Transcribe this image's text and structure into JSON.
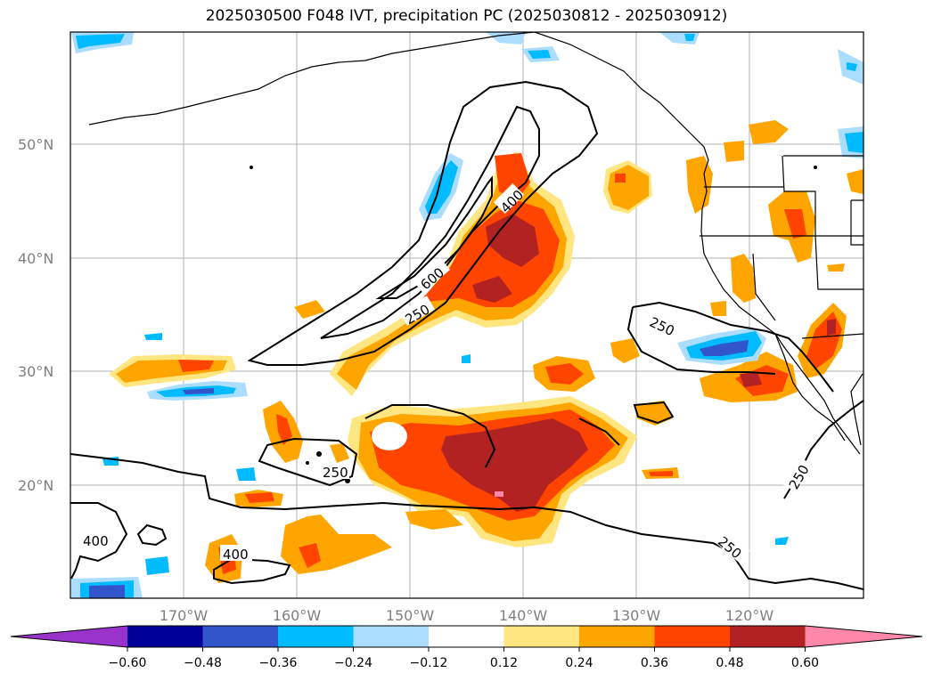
{
  "title": "2025030500 F048 IVT, precipitation PC (2025030812 - 2025030912)",
  "map": {
    "lat_labels": [
      "50°N",
      "40°N",
      "30°N",
      "20°N"
    ],
    "lon_labels": [
      "170°W",
      "160°W",
      "150°W",
      "140°W",
      "130°W",
      "120°W"
    ],
    "contour_labels": [
      "600",
      "400",
      "250",
      "250",
      "250",
      "250",
      "250",
      "400",
      "400"
    ]
  },
  "colorbar": {
    "ticks": [
      "−0.60",
      "−0.48",
      "−0.36",
      "−0.24",
      "−0.12",
      "0.12",
      "0.24",
      "0.36",
      "0.48",
      "0.60"
    ],
    "colors": [
      "#9933cc",
      "#000099",
      "#3355cc",
      "#00bbff",
      "#aaddff",
      "#ffffff",
      "#ffe680",
      "#ffa500",
      "#ff4400",
      "#b22222",
      "#ff88aa"
    ]
  }
}
